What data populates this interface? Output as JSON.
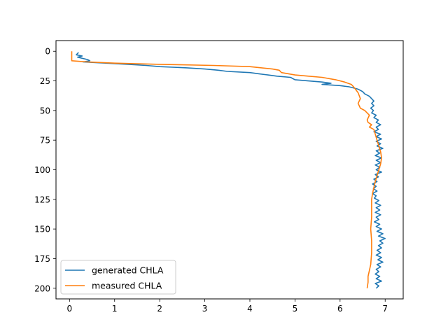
{
  "chart_data": {
    "type": "line",
    "title": "",
    "xlabel": "",
    "ylabel": "",
    "xlim": [
      -0.3,
      7.4
    ],
    "ylim": [
      209,
      -9
    ],
    "y_inverted": true,
    "xticks": [
      0,
      1,
      2,
      3,
      4,
      5,
      6,
      7
    ],
    "yticks": [
      0,
      25,
      50,
      75,
      100,
      125,
      150,
      175,
      200
    ],
    "grid": false,
    "legend": "lower-left",
    "series": [
      {
        "name": "generated CHLA",
        "color": "#1f77b4",
        "points": [
          [
            0.2,
            1
          ],
          [
            0.15,
            3
          ],
          [
            0.28,
            4
          ],
          [
            0.18,
            5
          ],
          [
            0.4,
            7
          ],
          [
            0.45,
            8
          ],
          [
            0.3,
            9
          ],
          [
            0.8,
            10
          ],
          [
            1.3,
            11
          ],
          [
            1.7,
            12
          ],
          [
            2.0,
            13
          ],
          [
            2.6,
            14
          ],
          [
            3.0,
            15
          ],
          [
            3.3,
            16
          ],
          [
            3.5,
            17
          ],
          [
            4.0,
            18
          ],
          [
            4.2,
            19
          ],
          [
            4.4,
            20
          ],
          [
            4.6,
            21
          ],
          [
            4.9,
            22
          ],
          [
            5.0,
            24
          ],
          [
            5.3,
            25
          ],
          [
            5.6,
            26
          ],
          [
            5.8,
            27
          ],
          [
            5.6,
            28
          ],
          [
            6.0,
            29
          ],
          [
            6.2,
            30
          ],
          [
            6.4,
            32
          ],
          [
            6.5,
            34
          ],
          [
            6.55,
            36
          ],
          [
            6.65,
            38
          ],
          [
            6.7,
            40
          ],
          [
            6.75,
            42
          ],
          [
            6.7,
            44
          ],
          [
            6.75,
            46
          ],
          [
            6.68,
            48
          ],
          [
            6.74,
            50
          ],
          [
            6.7,
            52
          ],
          [
            6.8,
            54
          ],
          [
            6.75,
            56
          ],
          [
            6.85,
            58
          ],
          [
            6.8,
            60
          ],
          [
            6.9,
            62
          ],
          [
            6.8,
            64
          ],
          [
            6.85,
            66
          ],
          [
            6.75,
            68
          ],
          [
            6.9,
            70
          ],
          [
            6.8,
            72
          ],
          [
            6.92,
            74
          ],
          [
            6.8,
            76
          ],
          [
            6.9,
            78
          ],
          [
            6.82,
            80
          ],
          [
            6.95,
            82
          ],
          [
            6.8,
            84
          ],
          [
            6.88,
            86
          ],
          [
            6.78,
            88
          ],
          [
            6.92,
            90
          ],
          [
            6.8,
            92
          ],
          [
            6.9,
            94
          ],
          [
            6.78,
            96
          ],
          [
            6.88,
            98
          ],
          [
            6.8,
            100
          ],
          [
            6.92,
            102
          ],
          [
            6.78,
            104
          ],
          [
            6.85,
            106
          ],
          [
            6.75,
            108
          ],
          [
            6.82,
            110
          ],
          [
            6.72,
            112
          ],
          [
            6.8,
            114
          ],
          [
            6.74,
            116
          ],
          [
            6.82,
            118
          ],
          [
            6.72,
            120
          ],
          [
            6.8,
            122
          ],
          [
            6.76,
            124
          ],
          [
            6.86,
            126
          ],
          [
            6.78,
            128
          ],
          [
            6.9,
            130
          ],
          [
            6.8,
            132
          ],
          [
            6.88,
            134
          ],
          [
            6.78,
            136
          ],
          [
            6.9,
            138
          ],
          [
            6.8,
            140
          ],
          [
            6.86,
            142
          ],
          [
            6.76,
            144
          ],
          [
            6.88,
            146
          ],
          [
            6.8,
            148
          ],
          [
            6.92,
            150
          ],
          [
            6.82,
            152
          ],
          [
            6.95,
            154
          ],
          [
            6.85,
            156
          ],
          [
            7.0,
            158
          ],
          [
            6.88,
            160
          ],
          [
            6.95,
            162
          ],
          [
            6.85,
            164
          ],
          [
            6.92,
            166
          ],
          [
            6.82,
            168
          ],
          [
            6.9,
            170
          ],
          [
            6.8,
            172
          ],
          [
            6.92,
            174
          ],
          [
            6.84,
            176
          ],
          [
            6.95,
            178
          ],
          [
            6.82,
            180
          ],
          [
            6.9,
            182
          ],
          [
            6.8,
            184
          ],
          [
            6.86,
            186
          ],
          [
            6.78,
            188
          ],
          [
            6.88,
            190
          ],
          [
            6.8,
            192
          ],
          [
            6.92,
            194
          ],
          [
            6.78,
            196
          ],
          [
            6.86,
            198
          ],
          [
            6.8,
            200
          ]
        ]
      },
      {
        "name": "measured CHLA",
        "color": "#ff7f0e",
        "points": [
          [
            0.05,
            0
          ],
          [
            0.05,
            8
          ],
          [
            0.4,
            9
          ],
          [
            1.0,
            10
          ],
          [
            2.0,
            11
          ],
          [
            3.2,
            12
          ],
          [
            4.0,
            13
          ],
          [
            4.5,
            15
          ],
          [
            4.65,
            16
          ],
          [
            4.7,
            18
          ],
          [
            5.0,
            20
          ],
          [
            5.3,
            21
          ],
          [
            5.6,
            22
          ],
          [
            5.9,
            24
          ],
          [
            6.1,
            26
          ],
          [
            6.25,
            28
          ],
          [
            6.3,
            30
          ],
          [
            6.4,
            35
          ],
          [
            6.45,
            40
          ],
          [
            6.4,
            44
          ],
          [
            6.45,
            48
          ],
          [
            6.55,
            50
          ],
          [
            6.6,
            52
          ],
          [
            6.65,
            54
          ],
          [
            6.6,
            58
          ],
          [
            6.62,
            60
          ],
          [
            6.7,
            62
          ],
          [
            6.65,
            64
          ],
          [
            6.75,
            66
          ],
          [
            6.78,
            70
          ],
          [
            6.82,
            75
          ],
          [
            6.86,
            80
          ],
          [
            6.9,
            85
          ],
          [
            6.92,
            90
          ],
          [
            6.9,
            95
          ],
          [
            6.86,
            100
          ],
          [
            6.82,
            105
          ],
          [
            6.78,
            110
          ],
          [
            6.75,
            115
          ],
          [
            6.72,
            120
          ],
          [
            6.7,
            125
          ],
          [
            6.7,
            130
          ],
          [
            6.7,
            140
          ],
          [
            6.68,
            150
          ],
          [
            6.7,
            160
          ],
          [
            6.7,
            170
          ],
          [
            6.68,
            180
          ],
          [
            6.65,
            185
          ],
          [
            6.62,
            190
          ],
          [
            6.62,
            195
          ],
          [
            6.6,
            200
          ]
        ]
      }
    ]
  }
}
